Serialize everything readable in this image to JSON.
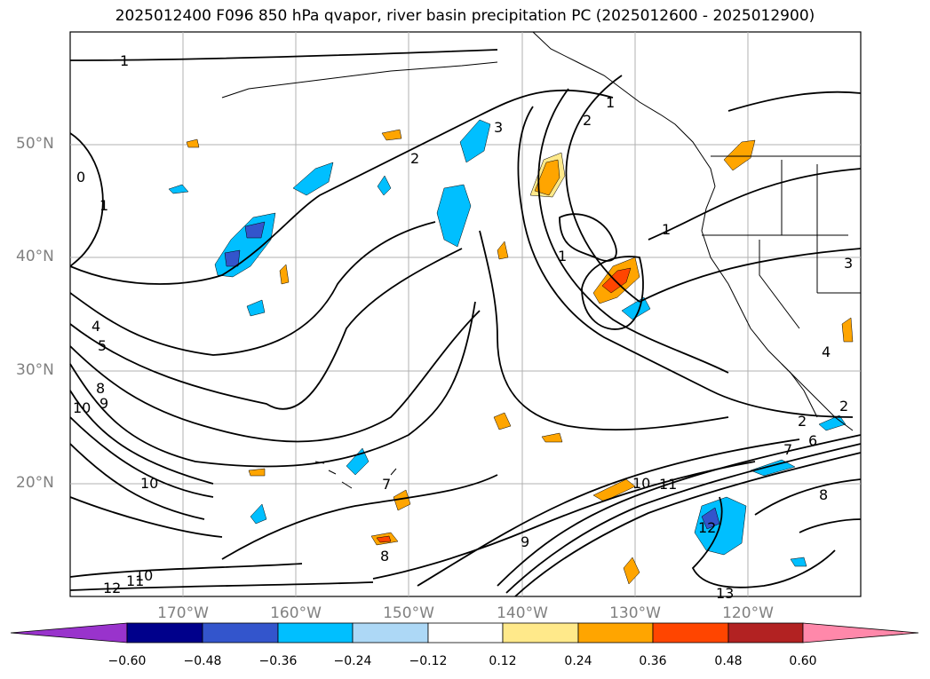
{
  "title": "2025012400 F096 850 hPa qvapor, river basin precipitation PC (2025012600 - 2025012900)",
  "map": {
    "lon_range": [
      -180,
      -110
    ],
    "lat_range": [
      10,
      60
    ],
    "lat_labels": [
      "50°N",
      "40°N",
      "30°N",
      "20°N"
    ],
    "lon_labels": [
      "170°W",
      "160°W",
      "150°W",
      "140°W",
      "130°W",
      "120°W"
    ],
    "contour_labels": [
      "1",
      "0",
      "1",
      "2",
      "3",
      "2",
      "1",
      "1",
      "1",
      "3",
      "4",
      "5",
      "8",
      "9",
      "10",
      "10",
      "10",
      "12",
      "11",
      "7",
      "4",
      "2",
      "6",
      "7",
      "8",
      "10",
      "11",
      "9",
      "12",
      "13",
      "2",
      "8"
    ]
  },
  "colorbar": {
    "ticks": [
      "−0.60",
      "−0.48",
      "−0.36",
      "−0.24",
      "−0.12",
      "0.12",
      "0.24",
      "0.36",
      "0.48",
      "0.60"
    ],
    "colors": [
      "#9933cc",
      "#00008b",
      "#3355cc",
      "#00bfff",
      "#add8f6",
      "#ffffff",
      "#ffe98a",
      "#ffa500",
      "#ff4500",
      "#b22222",
      "#ff88aa"
    ]
  }
}
